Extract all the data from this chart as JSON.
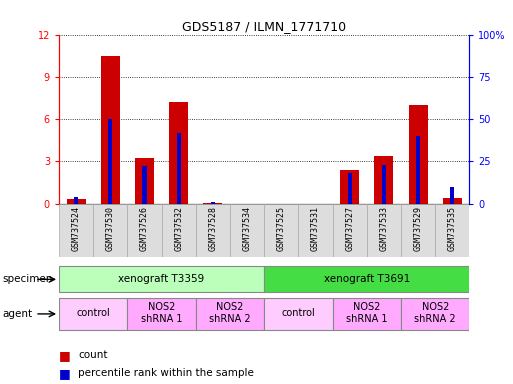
{
  "title": "GDS5187 / ILMN_1771710",
  "samples": [
    "GSM737524",
    "GSM737530",
    "GSM737526",
    "GSM737532",
    "GSM737528",
    "GSM737534",
    "GSM737525",
    "GSM737531",
    "GSM737527",
    "GSM737533",
    "GSM737529",
    "GSM737535"
  ],
  "count_values": [
    0.3,
    10.5,
    3.2,
    7.2,
    0.05,
    0.0,
    0.0,
    0.0,
    2.4,
    3.4,
    7.0,
    0.4
  ],
  "percentile_values": [
    4,
    50,
    22,
    42,
    1,
    0,
    0,
    0,
    18,
    23,
    40,
    10
  ],
  "ylim_left": [
    0,
    12
  ],
  "ylim_right": [
    0,
    100
  ],
  "yticks_left": [
    0,
    3,
    6,
    9,
    12
  ],
  "yticks_right": [
    0,
    25,
    50,
    75,
    100
  ],
  "bar_color_red": "#cc0000",
  "bar_color_blue": "#0000cc",
  "specimen_groups": [
    {
      "label": "xenograft T3359",
      "start": 0,
      "end": 5,
      "color": "#bbffbb"
    },
    {
      "label": "xenograft T3691",
      "start": 6,
      "end": 11,
      "color": "#44dd44"
    }
  ],
  "agent_groups": [
    {
      "label": "control",
      "start": 0,
      "end": 1,
      "color": "#ffccff"
    },
    {
      "label": "NOS2\nshRNA 1",
      "start": 2,
      "end": 3,
      "color": "#ffaaff"
    },
    {
      "label": "NOS2\nshRNA 2",
      "start": 4,
      "end": 5,
      "color": "#ffaaff"
    },
    {
      "label": "control",
      "start": 6,
      "end": 7,
      "color": "#ffccff"
    },
    {
      "label": "NOS2\nshRNA 1",
      "start": 8,
      "end": 9,
      "color": "#ffaaff"
    },
    {
      "label": "NOS2\nshRNA 2",
      "start": 10,
      "end": 11,
      "color": "#ffaaff"
    }
  ]
}
